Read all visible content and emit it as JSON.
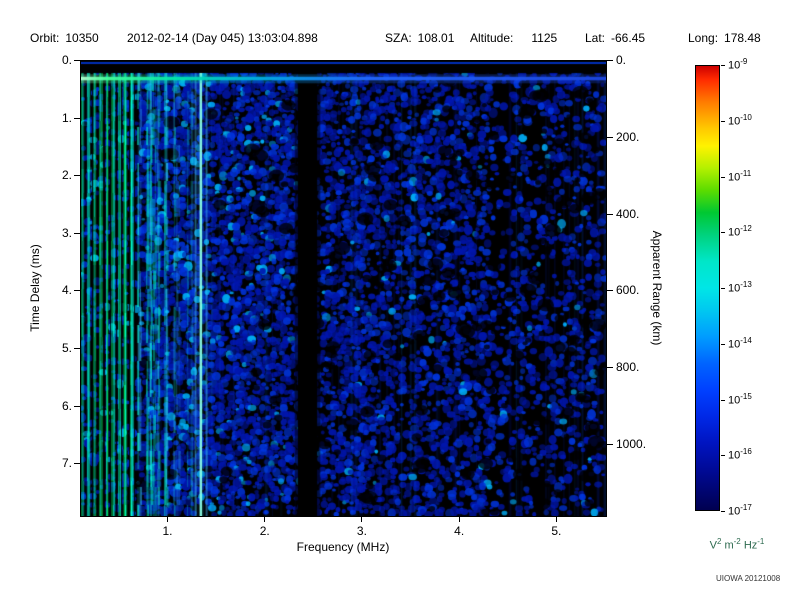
{
  "header": {
    "orbit_label": "Orbit:",
    "orbit_value": "10350",
    "datetime": "2012-02-14 (Day 045) 13:03:04.898",
    "sza_label": "SZA:",
    "sza_value": "108.01",
    "altitude_label": "Altitude:",
    "altitude_value": "1125",
    "lat_label": "Lat:",
    "lat_value": "-66.45",
    "long_label": "Long:",
    "long_value": "178.48"
  },
  "chart_data": {
    "type": "heatmap",
    "title": "",
    "xlabel": "Frequency (MHz)",
    "ylabel_left": "Time Delay (ms)",
    "ylabel_right": "Apparent Range (km)",
    "xlim_mhz": [
      0.1,
      5.5
    ],
    "ylim_ms": [
      0,
      7.9
    ],
    "km_per_ms": 150,
    "x_tick_values": [
      1,
      2,
      3,
      4,
      5
    ],
    "x_tick_labels": [
      "1.",
      "2.",
      "3.",
      "4.",
      "5."
    ],
    "y_tick_values_ms": [
      0,
      1,
      2,
      3,
      4,
      5,
      6,
      7
    ],
    "y_tick_labels_left": [
      "0.",
      "1.",
      "2.",
      "3.",
      "4.",
      "5.",
      "6.",
      "7."
    ],
    "y_tick_values_km": [
      0,
      200,
      400,
      600,
      800,
      1000
    ],
    "y_tick_labels_right": [
      "0.",
      "200.",
      "400.",
      "600.",
      "800.",
      "1000."
    ],
    "colorbar": {
      "scale": "log",
      "tick_base": "10",
      "tick_exponents": [
        "-9",
        "-10",
        "-11",
        "-12",
        "-13",
        "-14",
        "-15",
        "-16",
        "-17"
      ],
      "unit_parts": [
        [
          "V",
          "2"
        ],
        [
          "m",
          "-2"
        ],
        [
          "Hz",
          "-1"
        ]
      ],
      "unit_color": "#2d6a4f",
      "gradient": [
        {
          "stop": 0,
          "color": "#cc0000"
        },
        {
          "stop": 3,
          "color": "#ff2a00"
        },
        {
          "stop": 8,
          "color": "#ff7a00"
        },
        {
          "stop": 14,
          "color": "#ffc800"
        },
        {
          "stop": 18,
          "color": "#fff200"
        },
        {
          "stop": 23,
          "color": "#b4f000"
        },
        {
          "stop": 28,
          "color": "#5cdc00"
        },
        {
          "stop": 33,
          "color": "#00c832"
        },
        {
          "stop": 38,
          "color": "#00d27d"
        },
        {
          "stop": 44,
          "color": "#00e6c8"
        },
        {
          "stop": 50,
          "color": "#00e6e6"
        },
        {
          "stop": 55,
          "color": "#00c8f0"
        },
        {
          "stop": 61,
          "color": "#009cff"
        },
        {
          "stop": 67,
          "color": "#0064ff"
        },
        {
          "stop": 73,
          "color": "#0040ff"
        },
        {
          "stop": 79,
          "color": "#0028e6"
        },
        {
          "stop": 85,
          "color": "#0014c0"
        },
        {
          "stop": 91,
          "color": "#000a96"
        },
        {
          "stop": 100,
          "color": "#000050"
        }
      ]
    },
    "features": {
      "background_color": "#000000",
      "noise_low_color": "#0016ae",
      "noise_mid_color": "#0034dd",
      "noise_high_color": "#00b4ff",
      "stripe_colors": [
        "#00dc5a",
        "#00ffd2"
      ],
      "plasma_stripe_region_max_mhz": 0.66,
      "stripe_fade_max_mhz": 1.55,
      "bright_vertical_line_mhz": 1.33,
      "data_gap_band_mhz": [
        2.36,
        2.5
      ],
      "surface_line_delay_ms": 0.3,
      "top_edge_line_delay_ms": 0.035
    }
  },
  "footer": {
    "credit": "UIOWA 20121008"
  }
}
